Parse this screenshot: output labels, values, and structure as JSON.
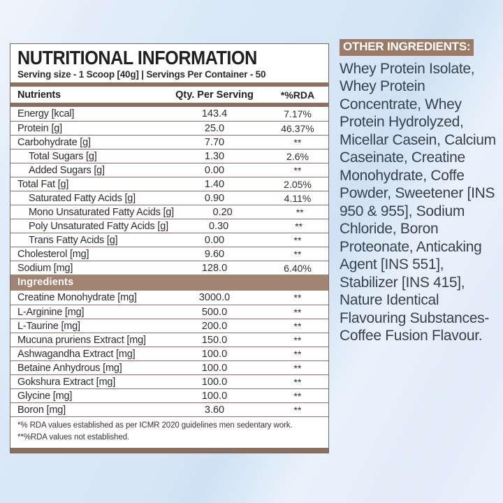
{
  "colors": {
    "accent_brown": "#8c6f5e",
    "section_header_brown": "#a28472",
    "badge_brown": "#9b7b66",
    "table_text": "#2d2d2d",
    "right_text": "#38404e",
    "background_blue": "#dbe9f7",
    "panel_white": "#ffffff"
  },
  "label": {
    "title": "NUTRITIONAL INFORMATION",
    "subtitle": "Serving size - 1 Scoop [40g] | Servings Per Container - 50",
    "columns": {
      "nutrients": "Nutrients",
      "qty": "Qty. Per Serving",
      "rda": "*%RDA"
    },
    "nutrient_rows": [
      {
        "name": "Energy [kcal]",
        "qty": "143.4",
        "rda": "7.17%",
        "indent": false
      },
      {
        "name": "Protein [g]",
        "qty": "25.0",
        "rda": "46.37%",
        "indent": false
      },
      {
        "name": "Carbohydrate [g]",
        "qty": "7.70",
        "rda": "**",
        "indent": false
      },
      {
        "name": "Total Sugars [g]",
        "qty": "1.30",
        "rda": "2.6%",
        "indent": true
      },
      {
        "name": "Added Sugars [g]",
        "qty": "0.00",
        "rda": "**",
        "indent": true
      },
      {
        "name": "Total Fat [g]",
        "qty": "1.40",
        "rda": "2.05%",
        "indent": false
      },
      {
        "name": "Saturated Fatty Acids [g]",
        "qty": "0.90",
        "rda": "4.11%",
        "indent": true
      },
      {
        "name": "Mono Unsaturated Fatty Acids [g]",
        "qty": "0.20",
        "rda": "**",
        "indent": true
      },
      {
        "name": "Poly Unsaturated Fatty Acids [g]",
        "qty": "0.30",
        "rda": "**",
        "indent": true
      },
      {
        "name": "Trans Fatty Acids [g]",
        "qty": "0.00",
        "rda": "**",
        "indent": true
      },
      {
        "name": "Cholesterol [mg]",
        "qty": "9.60",
        "rda": "**",
        "indent": false
      },
      {
        "name": "Sodium [mg]",
        "qty": "128.0",
        "rda": "6.40%",
        "indent": false
      }
    ],
    "ingredients_header": "Ingredients",
    "ingredient_rows": [
      {
        "name": "Creatine Monohydrate [mg]",
        "qty": "3000.0",
        "rda": "**",
        "indent": false
      },
      {
        "name": "L-Arginine [mg]",
        "qty": "500.0",
        "rda": "**",
        "indent": false
      },
      {
        "name": "L-Taurine [mg]",
        "qty": "200.0",
        "rda": "**",
        "indent": false
      },
      {
        "name": "Mucuna pruriens Extract [mg]",
        "qty": "150.0",
        "rda": "**",
        "indent": false
      },
      {
        "name": "Ashwagandha Extract [mg]",
        "qty": "100.0",
        "rda": "**",
        "indent": false
      },
      {
        "name": "Betaine Anhydrous [mg]",
        "qty": "100.0",
        "rda": "**",
        "indent": false
      },
      {
        "name": "Gokshura Extract [mg]",
        "qty": "100.0",
        "rda": "**",
        "indent": false
      },
      {
        "name": "Glycine [mg]",
        "qty": "100.0",
        "rda": "**",
        "indent": false
      },
      {
        "name": "Boron [mg]",
        "qty": "3.60",
        "rda": "**",
        "indent": false
      }
    ],
    "footnotes": [
      "*% RDA values established as per ICMR 2020 guidelines men sedentary work.",
      "**%RDA values not established."
    ]
  },
  "other_ingredients": {
    "heading": "OTHER INGREDIENTS:",
    "text": "Whey Protein Isolate, Whey Protein Concentrate, Whey Protein Hydrolyzed, Micellar Casein, Calcium Caseinate, Creatine Monohydrate, Coffe Powder, Sweetener [INS 950 & 955], Sodium Chloride, Boron Proteonate, Anticaking Agent [INS 551], Stabilizer [INS 415], Nature Identical Flavouring Substances-Coffee Fusion Flavour."
  }
}
